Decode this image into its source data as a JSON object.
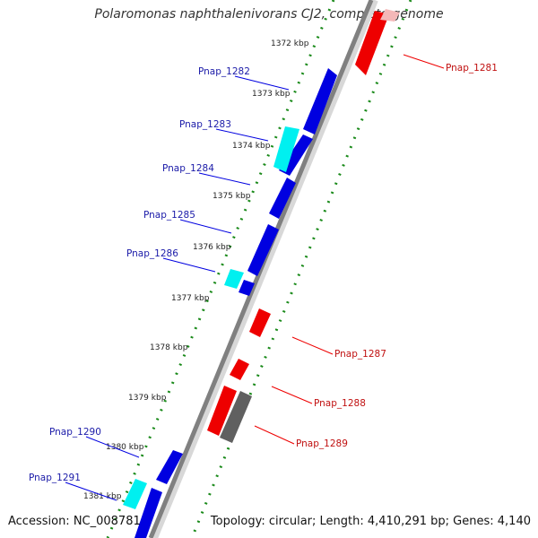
{
  "title": "Polaromonas naphthalenivorans CJ2, complete genome",
  "footer": {
    "accession": "Accession: NC_008781",
    "summary": "Topology: circular; Length: 4,410,291 bp; Genes: 4,140"
  },
  "colors": {
    "backbone": "#808080",
    "forward_gene": "#0000e0",
    "forward_gene_light": "#00f0f0",
    "reverse_gene": "#ee0000",
    "reverse_gene_grey": "#606060",
    "dots": "#1a8a1a"
  },
  "scale": {
    "unit": "kbp",
    "ticks": [
      "1372 kbp",
      "1373 kbp",
      "1374 kbp",
      "1375 kbp",
      "1376 kbp",
      "1377 kbp",
      "1378 kbp",
      "1379 kbp",
      "1380 kbp",
      "1381 kbp"
    ]
  },
  "genes_forward_labels": [
    "Pnap_1282",
    "Pnap_1283",
    "Pnap_1284",
    "Pnap_1285",
    "Pnap_1286",
    "Pnap_1290",
    "Pnap_1291"
  ],
  "genes_reverse_labels": [
    "Pnap_1281",
    "Pnap_1287",
    "Pnap_1288",
    "Pnap_1289"
  ]
}
